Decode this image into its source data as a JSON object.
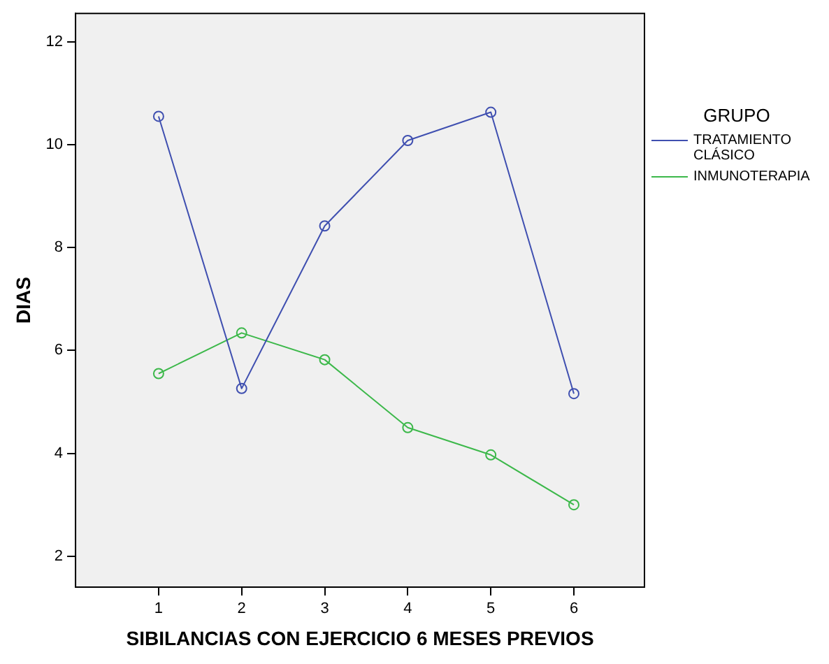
{
  "chart_data": {
    "type": "line",
    "xlabel": "SIBILANCIAS CON EJERCICIO 6 MESES PREVIOS",
    "ylabel": "DIAS",
    "legend_title": "GRUPO",
    "legend": "right",
    "marker": "circle",
    "grid": false,
    "x": [
      1,
      2,
      3,
      4,
      5,
      6
    ],
    "xlim": [
      0,
      6.85
    ],
    "xticks": [
      1,
      2,
      3,
      4,
      5,
      6
    ],
    "ylim": [
      1.4,
      12.55
    ],
    "yticks": [
      2,
      4,
      6,
      8,
      10,
      12
    ],
    "series": [
      {
        "name": "TRATAMIENTO CLÁSICO",
        "color": "#3f4fb0",
        "values": [
          10.55,
          5.26,
          8.42,
          10.08,
          10.63,
          5.16
        ]
      },
      {
        "name": "INMUNOTERAPIA",
        "color": "#3cb84a",
        "values": [
          5.55,
          6.34,
          5.82,
          4.5,
          3.97,
          3.0
        ]
      }
    ]
  }
}
